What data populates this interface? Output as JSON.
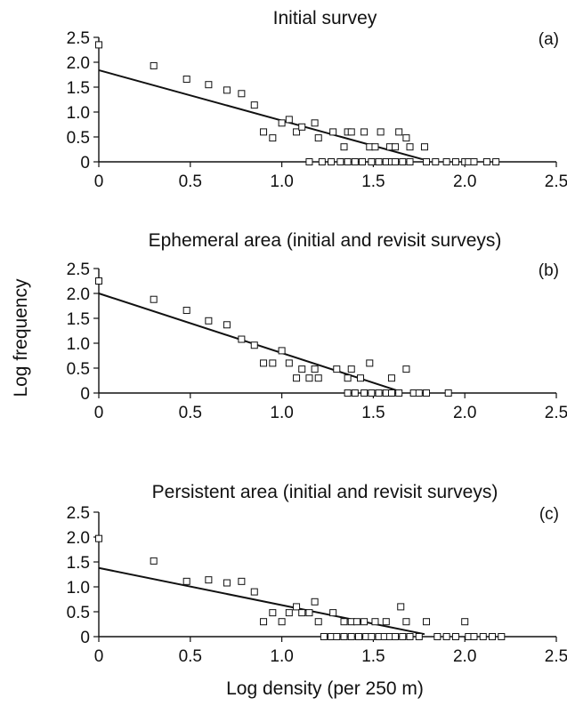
{
  "figure": {
    "ylabel": "Log frequency",
    "xlabel": "Log density (per 250 m)"
  },
  "chart_data": [
    {
      "type": "scatter",
      "title": "Initial survey",
      "panel_label": "(a)",
      "xlim": [
        0,
        2.5
      ],
      "ylim": [
        0,
        2.5
      ],
      "x_ticks": [
        "0",
        "0.5",
        "1.0",
        "1.5",
        "2.0",
        "2.5"
      ],
      "y_ticks": [
        "0",
        "0.5",
        "1.0",
        "1.5",
        "2.0",
        "2.5"
      ],
      "points": [
        [
          0,
          2.35
        ],
        [
          0.3,
          1.93
        ],
        [
          0.48,
          1.66
        ],
        [
          0.6,
          1.55
        ],
        [
          0.7,
          1.44
        ],
        [
          0.78,
          1.37
        ],
        [
          0.85,
          1.14
        ],
        [
          0.9,
          0.6
        ],
        [
          0.95,
          0.48
        ],
        [
          1.0,
          0.78
        ],
        [
          1.04,
          0.85
        ],
        [
          1.08,
          0.6
        ],
        [
          1.11,
          0.7
        ],
        [
          1.18,
          0.78
        ],
        [
          1.2,
          0.48
        ],
        [
          1.28,
          0.6
        ],
        [
          1.34,
          0.3
        ],
        [
          1.36,
          0.6
        ],
        [
          1.38,
          0.6
        ],
        [
          1.45,
          0.6
        ],
        [
          1.48,
          0.3
        ],
        [
          1.51,
          0.3
        ],
        [
          1.54,
          0.6
        ],
        [
          1.59,
          0.3
        ],
        [
          1.62,
          0.3
        ],
        [
          1.64,
          0.6
        ],
        [
          1.68,
          0.48
        ],
        [
          1.7,
          0.3
        ],
        [
          1.78,
          0.3
        ],
        [
          1.15,
          0
        ],
        [
          1.22,
          0
        ],
        [
          1.27,
          0
        ],
        [
          1.32,
          0
        ],
        [
          1.36,
          0
        ],
        [
          1.4,
          0
        ],
        [
          1.44,
          0
        ],
        [
          1.49,
          0
        ],
        [
          1.53,
          0
        ],
        [
          1.57,
          0
        ],
        [
          1.6,
          0
        ],
        [
          1.62,
          0
        ],
        [
          1.66,
          0
        ],
        [
          1.7,
          0
        ],
        [
          1.79,
          0
        ],
        [
          1.84,
          0
        ],
        [
          1.9,
          0
        ],
        [
          1.95,
          0
        ],
        [
          2.0,
          0
        ],
        [
          2.02,
          0
        ],
        [
          2.05,
          0
        ],
        [
          2.12,
          0
        ],
        [
          2.17,
          0
        ]
      ],
      "fit_line": [
        [
          0,
          1.84
        ],
        [
          1.77,
          0.05
        ]
      ]
    },
    {
      "type": "scatter",
      "title": "Ephemeral area (initial and revisit surveys)",
      "panel_label": "(b)",
      "xlim": [
        0,
        2.5
      ],
      "ylim": [
        0,
        2.5
      ],
      "x_ticks": [
        "0",
        "0.5",
        "1.0",
        "1.5",
        "2.0",
        "2.5"
      ],
      "y_ticks": [
        "0",
        "0.5",
        "1.0",
        "1.5",
        "2.0",
        "2.5"
      ],
      "points": [
        [
          0,
          2.25
        ],
        [
          0.3,
          1.88
        ],
        [
          0.48,
          1.66
        ],
        [
          0.6,
          1.45
        ],
        [
          0.7,
          1.37
        ],
        [
          0.78,
          1.08
        ],
        [
          0.85,
          0.96
        ],
        [
          0.9,
          0.6
        ],
        [
          0.95,
          0.6
        ],
        [
          1.0,
          0.85
        ],
        [
          1.04,
          0.6
        ],
        [
          1.08,
          0.3
        ],
        [
          1.11,
          0.48
        ],
        [
          1.15,
          0.3
        ],
        [
          1.18,
          0.48
        ],
        [
          1.2,
          0.3
        ],
        [
          1.3,
          0.48
        ],
        [
          1.36,
          0.3
        ],
        [
          1.38,
          0.48
        ],
        [
          1.43,
          0.3
        ],
        [
          1.48,
          0.6
        ],
        [
          1.6,
          0.3
        ],
        [
          1.68,
          0.48
        ],
        [
          1.36,
          0
        ],
        [
          1.4,
          0
        ],
        [
          1.45,
          0
        ],
        [
          1.49,
          0
        ],
        [
          1.53,
          0
        ],
        [
          1.57,
          0
        ],
        [
          1.6,
          0
        ],
        [
          1.64,
          0
        ],
        [
          1.72,
          0
        ],
        [
          1.75,
          0
        ],
        [
          1.79,
          0
        ],
        [
          1.91,
          0
        ]
      ],
      "fit_line": [
        [
          0,
          2.0
        ],
        [
          1.63,
          0.05
        ]
      ]
    },
    {
      "type": "scatter",
      "title": "Persistent area (initial and revisit surveys)",
      "panel_label": "(c)",
      "xlim": [
        0,
        2.5
      ],
      "ylim": [
        0,
        2.5
      ],
      "x_ticks": [
        "0",
        "0.5",
        "1.0",
        "1.5",
        "2.0",
        "2.5"
      ],
      "y_ticks": [
        "0",
        "0.5",
        "1.0",
        "1.5",
        "2.0",
        "2.5"
      ],
      "points": [
        [
          0,
          1.97
        ],
        [
          0.3,
          1.52
        ],
        [
          0.48,
          1.11
        ],
        [
          0.6,
          1.14
        ],
        [
          0.7,
          1.08
        ],
        [
          0.78,
          1.11
        ],
        [
          0.85,
          0.9
        ],
        [
          0.9,
          0.3
        ],
        [
          0.95,
          0.48
        ],
        [
          1.0,
          0.3
        ],
        [
          1.04,
          0.48
        ],
        [
          1.08,
          0.6
        ],
        [
          1.11,
          0.48
        ],
        [
          1.15,
          0.48
        ],
        [
          1.18,
          0.7
        ],
        [
          1.2,
          0.3
        ],
        [
          1.28,
          0.48
        ],
        [
          1.34,
          0.3
        ],
        [
          1.38,
          0.3
        ],
        [
          1.41,
          0.3
        ],
        [
          1.45,
          0.3
        ],
        [
          1.51,
          0.3
        ],
        [
          1.57,
          0.3
        ],
        [
          1.65,
          0.6
        ],
        [
          1.68,
          0.3
        ],
        [
          1.79,
          0.3
        ],
        [
          2.0,
          0.3
        ],
        [
          1.23,
          0
        ],
        [
          1.27,
          0
        ],
        [
          1.3,
          0
        ],
        [
          1.34,
          0
        ],
        [
          1.38,
          0
        ],
        [
          1.42,
          0
        ],
        [
          1.46,
          0
        ],
        [
          1.49,
          0
        ],
        [
          1.53,
          0
        ],
        [
          1.56,
          0
        ],
        [
          1.59,
          0
        ],
        [
          1.62,
          0
        ],
        [
          1.66,
          0
        ],
        [
          1.7,
          0
        ],
        [
          1.75,
          0
        ],
        [
          1.85,
          0
        ],
        [
          1.9,
          0
        ],
        [
          1.95,
          0
        ],
        [
          2.02,
          0
        ],
        [
          2.05,
          0
        ],
        [
          2.1,
          0
        ],
        [
          2.15,
          0
        ],
        [
          2.2,
          0
        ]
      ],
      "fit_line": [
        [
          0,
          1.38
        ],
        [
          1.78,
          0.05
        ]
      ]
    }
  ]
}
